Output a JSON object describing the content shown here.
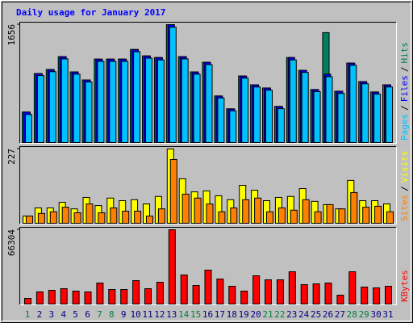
{
  "chart_data": [
    {
      "type": "bar",
      "title": "Daily usage for January 2017",
      "ylim": [
        0,
        1656
      ],
      "yticks": [
        1656
      ],
      "legend_separator": "/",
      "series": [
        {
          "name": "Hits",
          "color": "#00805c",
          "values": [
            428,
            969,
            1025,
            1206,
            992,
            879,
            1172,
            1172,
            1172,
            1307,
            1217,
            1194,
            1656,
            1206,
            992,
            1127,
            654,
            473,
            935,
            811,
            766,
            507,
            1194,
            1014,
            744,
            1544,
            721,
            1116,
            856,
            710,
            811
          ]
        },
        {
          "name": "Files",
          "color": "#0000ff",
          "values": [
            428,
            969,
            1025,
            1206,
            992,
            879,
            1172,
            1172,
            1172,
            1307,
            1217,
            1194,
            1656,
            1206,
            992,
            1127,
            654,
            473,
            935,
            811,
            766,
            507,
            1194,
            1014,
            744,
            960,
            721,
            1116,
            856,
            710,
            811
          ]
        },
        {
          "name": "Pages",
          "color": "#00c0ff",
          "values": [
            394,
            940,
            995,
            1175,
            960,
            850,
            1140,
            1140,
            1140,
            1275,
            1185,
            1160,
            1620,
            1175,
            960,
            1095,
            625,
            445,
            905,
            780,
            735,
            475,
            1160,
            985,
            715,
            924,
            690,
            1085,
            825,
            680,
            780
          ]
        }
      ]
    },
    {
      "type": "bar",
      "ylim": [
        0,
        227
      ],
      "yticks": [
        227
      ],
      "legend_separator": "/",
      "series": [
        {
          "name": "Visits",
          "color": "#ffff00",
          "values": [
            22,
            47,
            47,
            64,
            44,
            79,
            54,
            77,
            69,
            72,
            59,
            82,
            227,
            136,
            96,
            99,
            84,
            72,
            116,
            101,
            69,
            79,
            82,
            106,
            67,
            57,
            44,
            131,
            69,
            69,
            59
          ]
        },
        {
          "name": "Sites",
          "color": "#ff8000",
          "values": [
            22,
            30,
            35,
            49,
            32,
            59,
            32,
            47,
            37,
            37,
            22,
            44,
            195,
            89,
            77,
            59,
            35,
            47,
            72,
            77,
            35,
            47,
            40,
            72,
            35,
            57,
            44,
            94,
            49,
            52,
            35
          ]
        }
      ]
    },
    {
      "type": "bar",
      "ylim": [
        0,
        66304
      ],
      "yticks": [
        66304
      ],
      "categories": [
        "1",
        "2",
        "3",
        "4",
        "5",
        "6",
        "7",
        "8",
        "9",
        "10",
        "11",
        "12",
        "13",
        "14",
        "15",
        "16",
        "17",
        "18",
        "19",
        "20",
        "21",
        "22",
        "23",
        "24",
        "25",
        "26",
        "27",
        "28",
        "29",
        "30",
        "31"
      ],
      "category_colors": [
        "#008040",
        "#000080",
        "#000080",
        "#000080",
        "#000080",
        "#000080",
        "#008040",
        "#008040",
        "#000080",
        "#000080",
        "#000080",
        "#000080",
        "#000080",
        "#008040",
        "#008040",
        "#000080",
        "#000080",
        "#000080",
        "#000080",
        "#000080",
        "#008040",
        "#008040",
        "#000080",
        "#000080",
        "#000080",
        "#000080",
        "#000080",
        "#008040",
        "#008040",
        "#000080",
        "#000080"
      ],
      "series": [
        {
          "name": "KBytes",
          "color": "#ff0000",
          "values": [
            5040,
            10800,
            12240,
            13680,
            11520,
            10800,
            18720,
            12960,
            12960,
            20880,
            13680,
            19440,
            66304,
            25920,
            16560,
            30240,
            22320,
            15840,
            11520,
            25200,
            21600,
            21600,
            28800,
            17280,
            18000,
            18720,
            7920,
            28800,
            15120,
            14400,
            15840
          ]
        }
      ]
    }
  ]
}
